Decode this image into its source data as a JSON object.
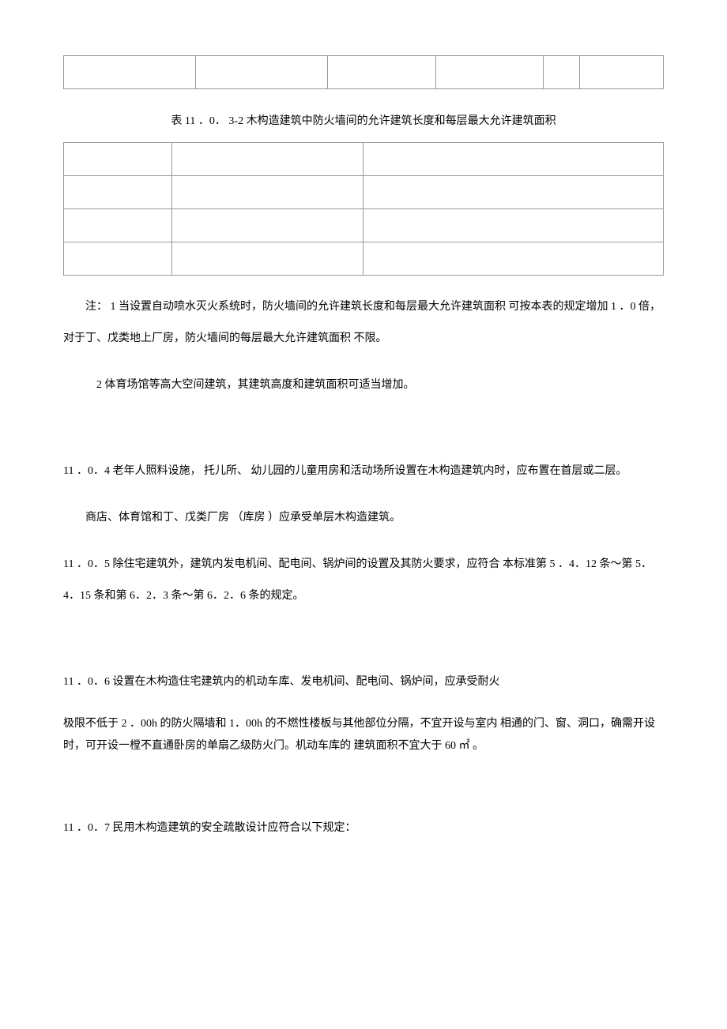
{
  "table1": {
    "rows": [
      [
        "",
        "",
        "",
        "",
        "",
        ""
      ]
    ]
  },
  "caption2": "表  11 ．0．  3-2 木构造建筑中防火墙间的允许建筑长度和每层最大允许建筑面积",
  "table2": {
    "rows": [
      [
        "",
        "",
        ""
      ],
      [
        "",
        "",
        ""
      ],
      [
        "",
        "",
        ""
      ],
      [
        "",
        "",
        ""
      ]
    ]
  },
  "note1": "注：  1 当设置自动喷水灭火系统时，防火墙间的允许建筑长度和每层最大允许建筑面积  可按本表的规定增加 1 ．0 倍，对于丁、戊类地上厂房，防火墙间的每层最大允许建筑面积  不限。",
  "note2": "2 体育场馆等高大空间建筑，其建筑高度和建筑面积可适当增加。",
  "p1104": "11 ．0．4 老年人照料设施，  托儿所、  幼儿园的儿童用房和活动场所设置在木构造建筑内时，应布置在首层或二层。",
  "p1104b": "商店、体育馆和丁、戊类厂房  （库房 ）应承受单层木构造建筑。",
  "p1105": "11 ．0．5 除住宅建筑外，建筑内发电机间、配电间、锅炉间的设置及其防火要求，应符合  本标准第 5 ．4．12 条～第 5．4．15 条和第 6．2．3 条～第 6．2．6 条的规定。",
  "p1106a": "11 ．0．6 设置在木构造住宅建筑内的机动车库、发电机间、配电间、锅炉间，应承受耐火",
  "p1106b": "极限不低于 2 ．00h 的防火隔墙和 1．00h 的不燃性楼板与其他部位分隔，不宜开设与室内  相通的门、窗、洞口，确需开设时，可开设一樘不直通卧房的单扇乙级防火门。机动车库的  建筑面积不宜大于 60 ㎡ 。",
  "p1107": "11 ．0．7 民用木构造建筑的安全疏散设计应符合以下规定："
}
